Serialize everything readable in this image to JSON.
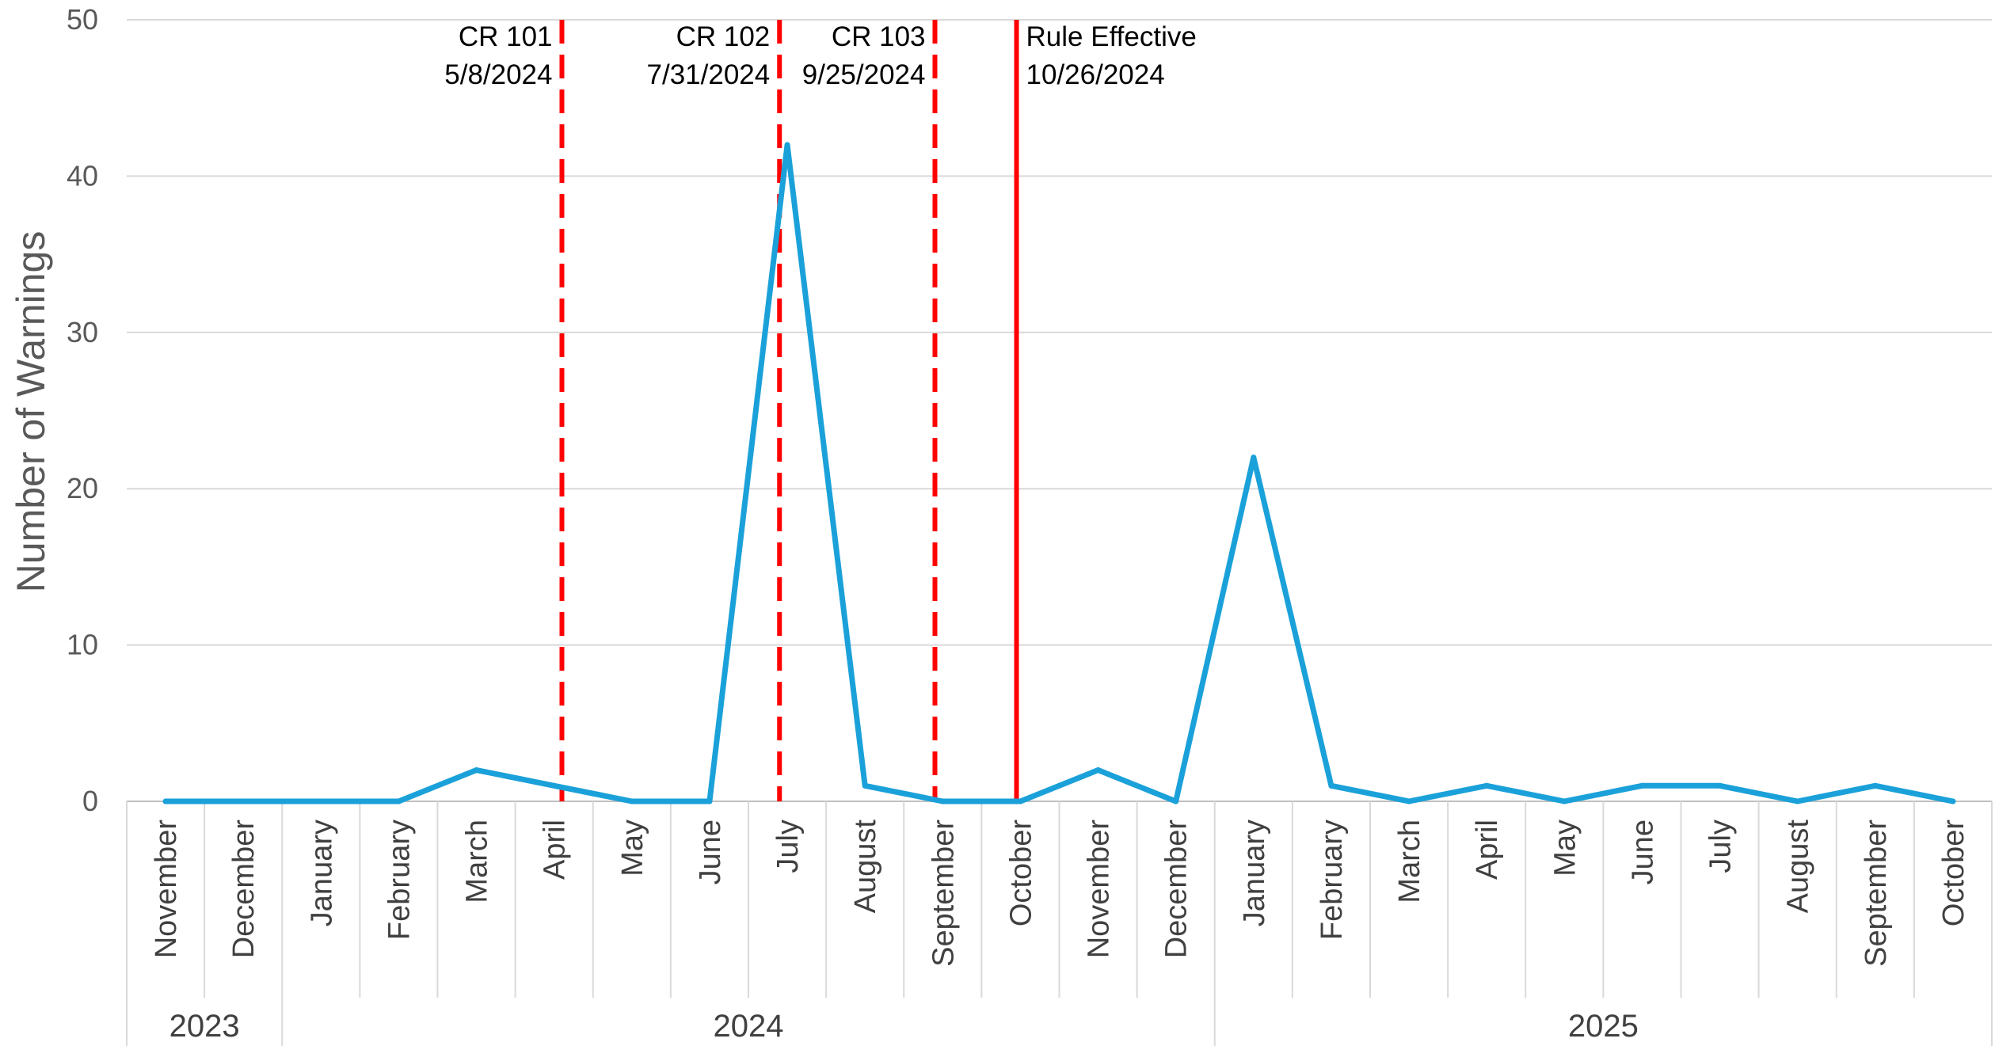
{
  "chart_data": {
    "type": "line",
    "title": "",
    "xlabel": "",
    "ylabel": "Number of Warnings",
    "ylim": [
      0,
      50
    ],
    "yticks": [
      0,
      10,
      20,
      30,
      40,
      50
    ],
    "grid": true,
    "x": [
      "November",
      "December",
      "January",
      "February",
      "March",
      "April",
      "May",
      "June",
      "July",
      "August",
      "September",
      "October",
      "November",
      "December",
      "January",
      "February",
      "March",
      "April",
      "May",
      "June",
      "July",
      "August",
      "September",
      "October"
    ],
    "years": [
      {
        "label": "2023",
        "start": 0,
        "end": 1
      },
      {
        "label": "2024",
        "start": 2,
        "end": 13
      },
      {
        "label": "2025",
        "start": 14,
        "end": 23
      }
    ],
    "series": [
      {
        "values": [
          0,
          0,
          0,
          0,
          2,
          1,
          0,
          0,
          42,
          1,
          0,
          0,
          2,
          0,
          22,
          1,
          0,
          1,
          0,
          1,
          1,
          0,
          1,
          0
        ],
        "color": "#1ba1d9"
      }
    ],
    "annotations": [
      {
        "line1": "CR 101",
        "line2": "5/8/2024",
        "x": 5.6,
        "style": "dashed",
        "align": "right"
      },
      {
        "line1": "CR 102",
        "line2": "7/31/2024",
        "x": 8.4,
        "style": "dashed",
        "align": "right"
      },
      {
        "line1": "CR 103",
        "line2": "9/25/2024",
        "x": 10.4,
        "style": "dashed",
        "align": "right"
      },
      {
        "line1": "Rule Effective",
        "line2": "10/26/2024",
        "x": 11.45,
        "style": "solid",
        "align": "left"
      }
    ],
    "annotation_color": "#ff0000"
  }
}
